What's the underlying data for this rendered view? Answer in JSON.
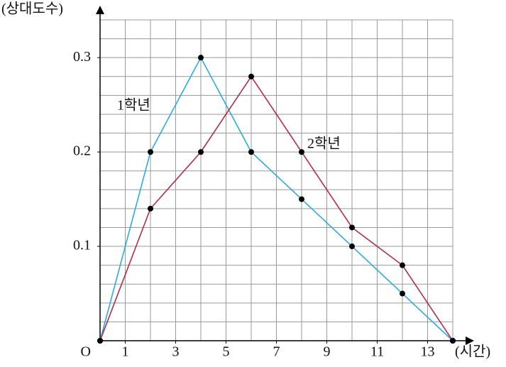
{
  "chart_data": {
    "type": "line",
    "x_label": "(시간)",
    "y_label": "(상대도수)",
    "origin_label": "O",
    "x": [
      0,
      2,
      4,
      6,
      8,
      10,
      12,
      14
    ],
    "series": [
      {
        "name": "1학년",
        "color": "#29abe2",
        "values": [
          0,
          0.2,
          0.3,
          0.2,
          0.15,
          0.1,
          0.05,
          0
        ]
      },
      {
        "name": "2학년",
        "color": "#b52a4a",
        "values": [
          0,
          0.14,
          0.2,
          0.28,
          0.2,
          0.12,
          0.08,
          0
        ]
      }
    ],
    "xlim": [
      0,
      14
    ],
    "ylim": [
      0,
      0.34
    ],
    "xticks": [
      1,
      3,
      5,
      7,
      9,
      11,
      13
    ],
    "yticks": [
      0.1,
      0.2,
      0.3
    ],
    "grid": {
      "x_step": 1,
      "y_step": 0.02
    }
  }
}
